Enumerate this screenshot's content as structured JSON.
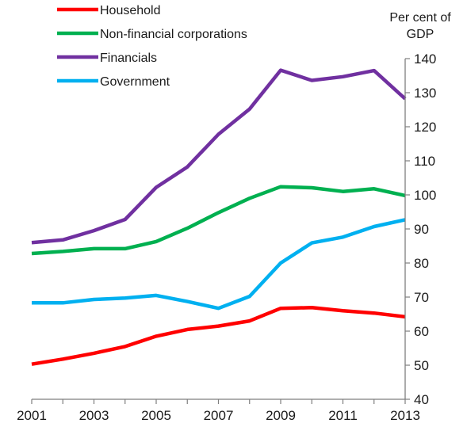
{
  "chart_data": {
    "type": "line",
    "title": "",
    "xlabel": "",
    "ylabel_lines": [
      "Per cent of",
      "GDP"
    ],
    "x": [
      2001,
      2002,
      2003,
      2004,
      2005,
      2006,
      2007,
      2008,
      2009,
      2010,
      2011,
      2012,
      2013
    ],
    "xticks": [
      "2001",
      "2003",
      "2005",
      "2007",
      "2009",
      "2011",
      "2013"
    ],
    "xlim": [
      2001,
      2013
    ],
    "ylim": [
      40,
      140
    ],
    "yticks": [
      "40",
      "50",
      "60",
      "70",
      "80",
      "90",
      "100",
      "110",
      "120",
      "130",
      "140"
    ],
    "y_axis_side": "right",
    "grid": false,
    "legend_position": "top-left",
    "series": [
      {
        "name": "Household",
        "color": "#ff0000",
        "values": [
          50.3,
          51.8,
          53.5,
          55.5,
          58.5,
          60.5,
          61.5,
          63,
          66.7,
          66.9,
          66,
          65.3,
          64.2
        ]
      },
      {
        "name": "Non-financial corporations",
        "color": "#00b050",
        "values": [
          82.8,
          83.4,
          84.2,
          84.2,
          86.3,
          90.2,
          94.8,
          99,
          102.4,
          102.1,
          101,
          101.8,
          99.8
        ]
      },
      {
        "name": "Financials",
        "color": "#7030a0",
        "values": [
          86,
          86.8,
          89.5,
          92.8,
          102.2,
          108.2,
          117.8,
          125.2,
          136.6,
          133.6,
          134.7,
          136.5,
          128.2
        ]
      },
      {
        "name": "Government",
        "color": "#00b0f0",
        "values": [
          68.3,
          68.3,
          69.3,
          69.7,
          70.5,
          68.7,
          66.7,
          70.2,
          80,
          85.9,
          87.6,
          90.7,
          92.7
        ]
      }
    ]
  }
}
